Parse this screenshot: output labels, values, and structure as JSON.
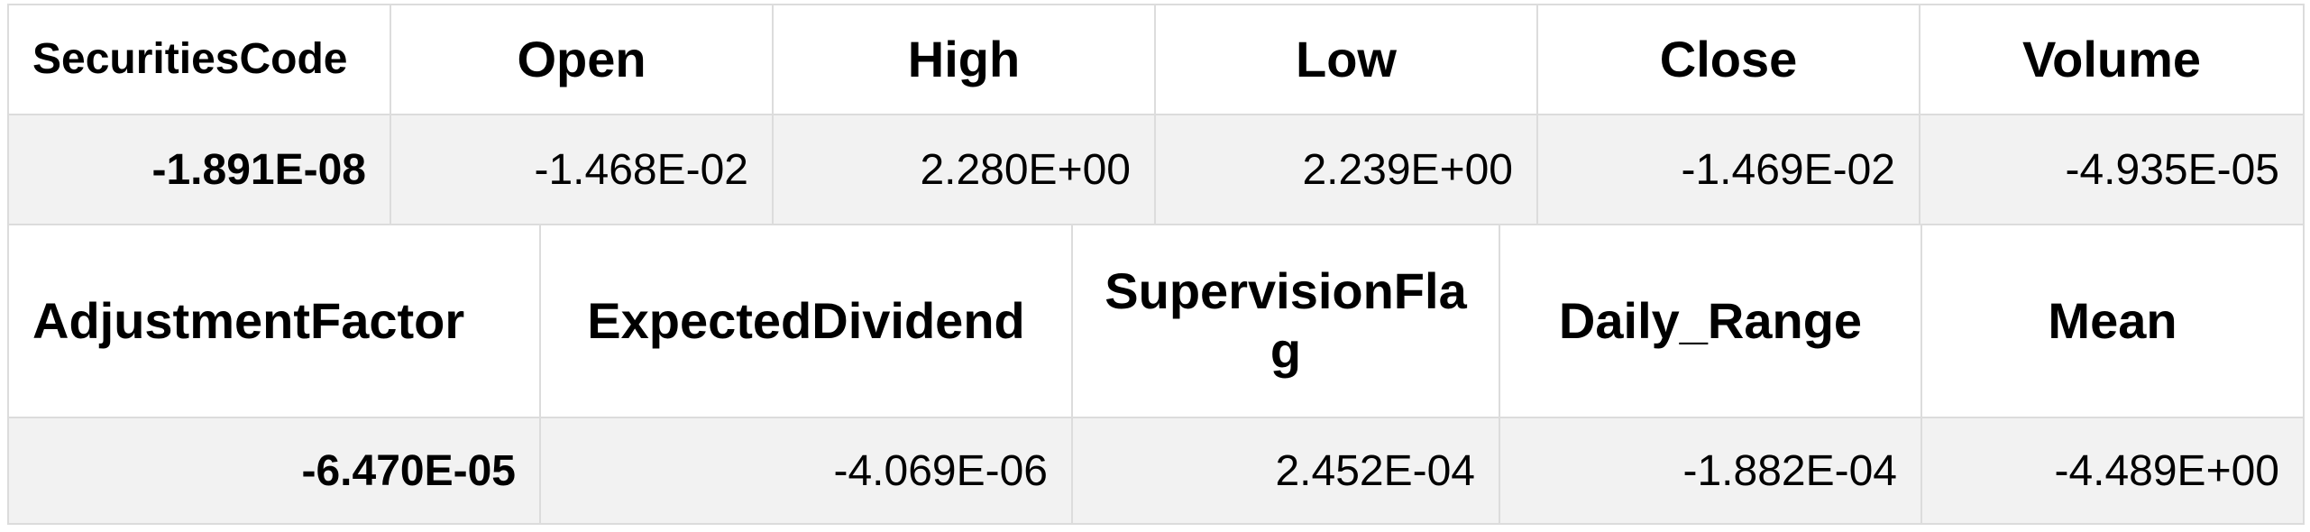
{
  "table_top": {
    "headers": [
      "SecuritiesCode",
      "Open",
      "High",
      "Low",
      "Close",
      "Volume"
    ],
    "values": [
      "-1.891E-08",
      "-1.468E-02",
      "2.280E+00",
      "2.239E+00",
      "-1.469E-02",
      "-4.935E-05"
    ]
  },
  "table_bottom": {
    "headers": [
      "AdjustmentFactor",
      "ExpectedDividend",
      "SupervisionFlag",
      "Daily_Range",
      "Mean"
    ],
    "values": [
      "-6.470E-05",
      "-4.069E-06",
      "2.452E-04",
      "-1.882E-04",
      "-4.489E+00"
    ]
  }
}
